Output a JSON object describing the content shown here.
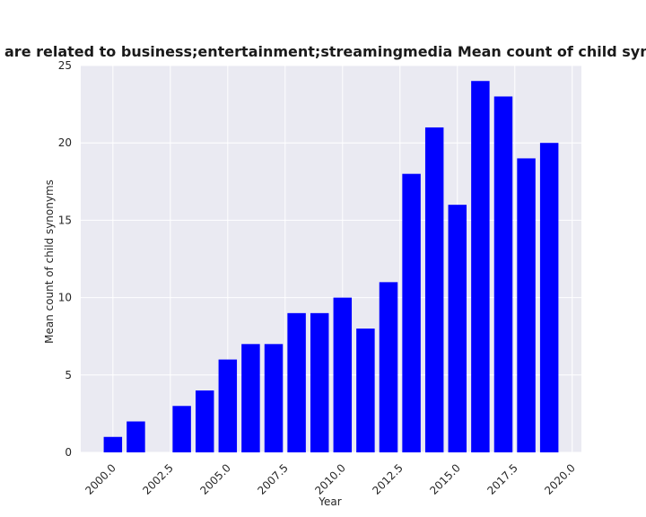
{
  "chart_data": {
    "type": "bar",
    "title": "are related to business;entertainment;streamingmedia Mean count of child synonyms in priva",
    "xlabel": "Year",
    "ylabel": "Mean count of child synonyms",
    "x": [
      2000,
      2001,
      2003,
      2004,
      2005,
      2006,
      2007,
      2008,
      2009,
      2010,
      2011,
      2012,
      2013,
      2014,
      2015,
      2016,
      2017,
      2018,
      2019
    ],
    "values": [
      1,
      2,
      3,
      4,
      6,
      7,
      7,
      9,
      9,
      10,
      8,
      11,
      18,
      21,
      16,
      24,
      23,
      19,
      20
    ],
    "xlim": [
      1998.6,
      2020.4
    ],
    "ylim": [
      0,
      25
    ],
    "xticks": [
      2000.0,
      2002.5,
      2005.0,
      2007.5,
      2010.0,
      2012.5,
      2015.0,
      2017.5,
      2020.0
    ],
    "xtick_labels": [
      "2000.0",
      "2002.5",
      "2005.0",
      "2007.5",
      "2010.0",
      "2012.5",
      "2015.0",
      "2017.5",
      "2020.0"
    ],
    "yticks": [
      0,
      5,
      10,
      15,
      20,
      25
    ],
    "ytick_labels": [
      "0",
      "5",
      "10",
      "15",
      "20",
      "25"
    ],
    "bar_width": 0.8,
    "grid": true,
    "legend": "none",
    "colors": {
      "bar": "#0000ff",
      "plot_background": "#eaeaf2",
      "grid": "#ffffff"
    }
  }
}
